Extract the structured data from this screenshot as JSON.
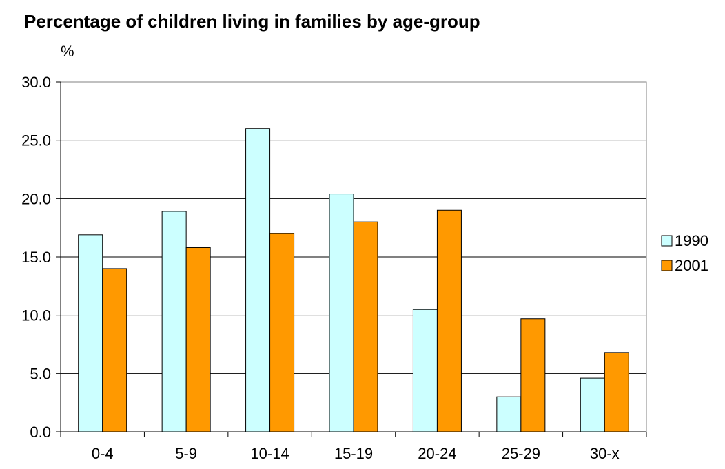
{
  "chart_data": {
    "type": "bar",
    "title": "Percentage of children living in families by age-group",
    "ylabel": "%",
    "xlabel": "",
    "categories": [
      "0-4",
      "5-9",
      "10-14",
      "15-19",
      "20-24",
      "25-29",
      "30-x"
    ],
    "series": [
      {
        "name": "1990",
        "color": "#ccffff",
        "values": [
          16.9,
          18.9,
          26.0,
          20.4,
          10.5,
          3.0,
          4.6
        ]
      },
      {
        "name": "2001",
        "color": "#ff9900",
        "values": [
          14.0,
          15.8,
          17.0,
          18.0,
          19.0,
          9.7,
          6.8
        ]
      }
    ],
    "ylim": [
      0,
      30
    ],
    "yticks": [
      "0.0",
      "5.0",
      "10.0",
      "15.0",
      "20.0",
      "25.0",
      "30.0"
    ],
    "ytick_values": [
      0,
      5,
      10,
      15,
      20,
      25,
      30
    ],
    "grid": true,
    "legend_position": "right"
  }
}
